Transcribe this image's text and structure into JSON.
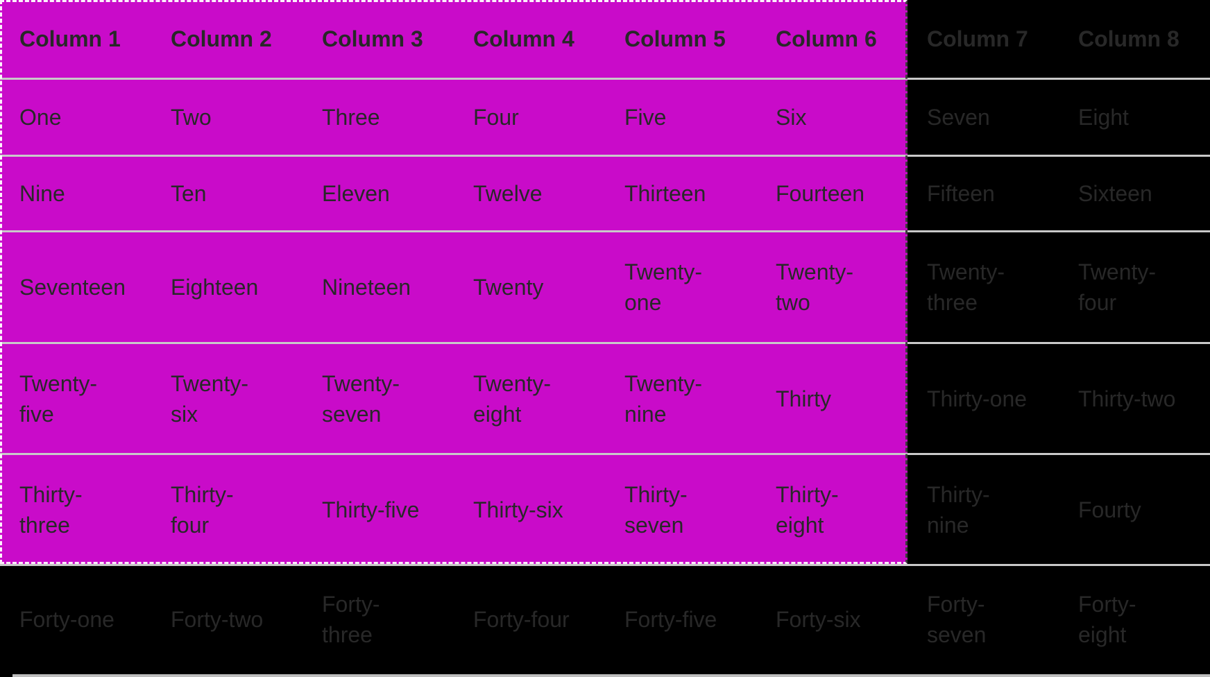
{
  "colors": {
    "background": "#000000",
    "selection": "#C90BC9",
    "selection_border_dark": "#3C3C3C",
    "separator": "#C9C9C9",
    "text": "#282828",
    "scrollbar": "#BDBDBD"
  },
  "table": {
    "headers": [
      "Column 1",
      "Column 2",
      "Column 3",
      "Column 4",
      "Column 5",
      "Column 6",
      "Column 7",
      "Column 8"
    ],
    "rows": [
      [
        "One",
        "Two",
        "Three",
        "Four",
        "Five",
        "Six",
        "Seven",
        "Eight"
      ],
      [
        "Nine",
        "Ten",
        "Eleven",
        "Twelve",
        "Thirteen",
        "Fourteen",
        "Fifteen",
        "Sixteen"
      ],
      [
        "Seventeen",
        "Eighteen",
        "Nineteen",
        "Twenty",
        "Twenty-\none",
        "Twenty-\ntwo",
        "Twenty-\nthree",
        "Twenty-\nfour"
      ],
      [
        "Twenty-\nfive",
        "Twenty-\nsix",
        "Twenty-\nseven",
        "Twenty-\neight",
        "Twenty-\nnine",
        "Thirty",
        "Thirty-one",
        "Thirty-two"
      ],
      [
        "Thirty-\nthree",
        "Thirty-\nfour",
        "Thirty-five",
        "Thirty-six",
        "Thirty-\nseven",
        "Thirty-\neight",
        "Thirty-\nnine",
        "Fourty"
      ],
      [
        "Forty-one",
        "Forty-two",
        "Forty-\nthree",
        "Forty-four",
        "Forty-five",
        "Forty-six",
        "Forty-\nseven",
        "Forty-\neight"
      ]
    ]
  }
}
